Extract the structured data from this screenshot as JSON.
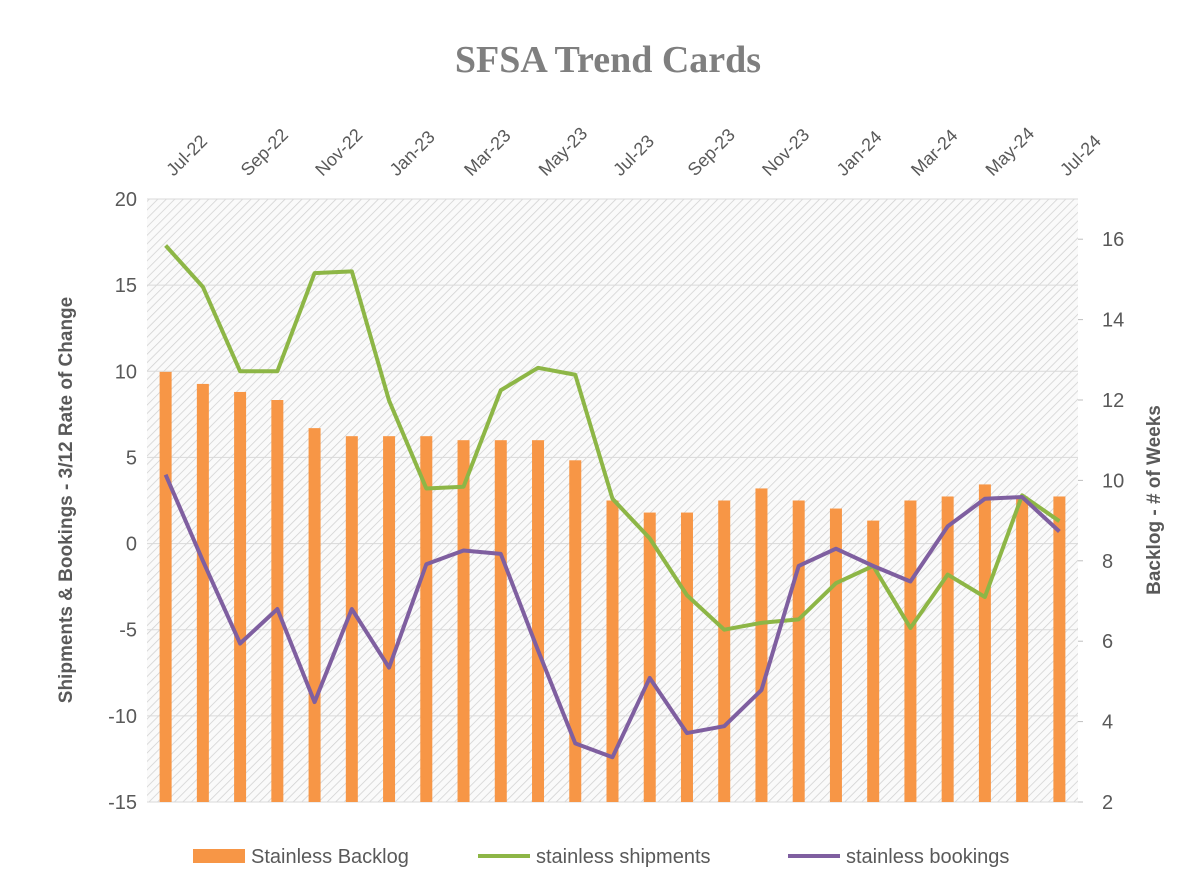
{
  "chart_data": {
    "type": "bar_line",
    "title": "SFSA Trend Cards",
    "y_label": "Shipments & Bookings - 3/12  Rate of Change",
    "y2_label": "Backlog - # of Weeks",
    "categories": [
      "Jul-22",
      null,
      "Sep-22",
      null,
      "Nov-22",
      null,
      "Jan-23",
      null,
      "Mar-23",
      null,
      "May-23",
      null,
      "Jul-23",
      null,
      "Sep-23",
      null,
      "Nov-23",
      null,
      "Jan-24",
      null,
      "Mar-24",
      null,
      "May-24",
      null,
      "Jul-24"
    ],
    "ylim": [
      -15,
      20
    ],
    "yticks": [
      -15,
      -10,
      -5,
      0,
      5,
      10,
      15,
      20
    ],
    "y2lim": [
      2,
      17
    ],
    "y2ticks": [
      2,
      4,
      6,
      8,
      10,
      12,
      14,
      16
    ],
    "series": [
      {
        "name": "Stainless Backlog",
        "kind": "bar",
        "axis": "y2",
        "color": "#f79646",
        "values": [
          12.7,
          12.4,
          12.2,
          12.0,
          11.3,
          11.1,
          11.1,
          11.1,
          11.0,
          11.0,
          11.0,
          10.5,
          9.5,
          9.2,
          9.2,
          9.5,
          9.8,
          9.5,
          9.3,
          9.0,
          9.5,
          9.6,
          9.9,
          9.6,
          9.6
        ]
      },
      {
        "name": "stainless shipments",
        "kind": "line",
        "color": "#8db646",
        "values": [
          17.3,
          14.9,
          10,
          10,
          15.7,
          15.8,
          8.3,
          3.2,
          3.3,
          8.9,
          10.2,
          9.8,
          2.6,
          0.3,
          -3.0,
          -5.0,
          -4.6,
          -4.4,
          -2.3,
          -1.3,
          -4.9,
          -1.8,
          -3.1,
          2.8,
          1.3
        ]
      },
      {
        "name": "stainless bookings",
        "kind": "line",
        "color": "#7f5fa0",
        "values": [
          4.0,
          -1.0,
          -5.8,
          -3.8,
          -9.2,
          -3.8,
          -7.2,
          -1.2,
          -0.4,
          -0.6,
          -6.2,
          -11.6,
          -12.4,
          -7.8,
          -11.0,
          -10.6,
          -8.5,
          -1.3,
          -0.3,
          -1.3,
          -2.2,
          1.0,
          2.6,
          2.7,
          0.7
        ]
      }
    ]
  }
}
